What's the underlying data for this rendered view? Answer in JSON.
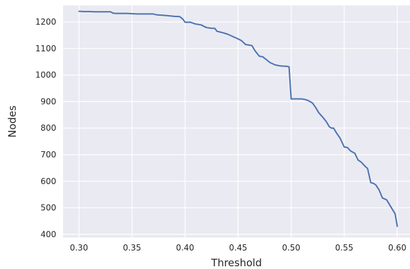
{
  "chart_data": {
    "type": "line",
    "title": "",
    "xlabel": "Threshold",
    "ylabel": "Nodes",
    "xlim": [
      0.285,
      0.612
    ],
    "ylim": [
      388,
      1262
    ],
    "xticks": [
      0.3,
      0.35,
      0.4,
      0.45,
      0.5,
      0.55,
      0.6
    ],
    "xtick_labels": [
      "0.30",
      "0.35",
      "0.40",
      "0.45",
      "0.50",
      "0.55",
      "0.60"
    ],
    "yticks": [
      400,
      500,
      600,
      700,
      800,
      900,
      1000,
      1100,
      1200
    ],
    "ytick_labels": [
      "400",
      "500",
      "600",
      "700",
      "800",
      "900",
      "1000",
      "1100",
      "1200"
    ],
    "grid": true,
    "style": {
      "background": "#EAEAF2",
      "grid_color": "#FFFFFF",
      "line_color": "#4C72B0"
    },
    "series": [
      {
        "x": [
          0.3,
          0.305,
          0.31,
          0.315,
          0.32,
          0.325,
          0.33,
          0.332,
          0.335,
          0.34,
          0.345,
          0.35,
          0.355,
          0.36,
          0.365,
          0.37,
          0.373,
          0.376,
          0.38,
          0.385,
          0.39,
          0.395,
          0.398,
          0.4,
          0.405,
          0.41,
          0.415,
          0.42,
          0.425,
          0.428,
          0.43,
          0.435,
          0.44,
          0.445,
          0.45,
          0.453,
          0.457,
          0.46,
          0.463,
          0.466,
          0.47,
          0.473,
          0.476,
          0.48,
          0.485,
          0.49,
          0.496,
          0.498,
          0.5,
          0.505,
          0.51,
          0.513,
          0.516,
          0.52,
          0.523,
          0.526,
          0.53,
          0.533,
          0.536,
          0.538,
          0.54,
          0.543,
          0.546,
          0.55,
          0.553,
          0.556,
          0.56,
          0.563,
          0.566,
          0.57,
          0.572,
          0.575,
          0.578,
          0.58,
          0.583,
          0.586,
          0.59,
          0.593,
          0.596,
          0.598,
          0.6
        ],
        "y": [
          1240,
          1239,
          1239,
          1238,
          1238,
          1238,
          1238,
          1233,
          1232,
          1232,
          1232,
          1231,
          1230,
          1230,
          1230,
          1230,
          1227,
          1226,
          1225,
          1223,
          1221,
          1220,
          1210,
          1199,
          1199,
          1192,
          1189,
          1179,
          1176,
          1176,
          1165,
          1160,
          1154,
          1145,
          1136,
          1130,
          1115,
          1113,
          1111,
          1091,
          1071,
          1069,
          1060,
          1047,
          1038,
          1034,
          1033,
          1031,
          910,
          910,
          910,
          908,
          904,
          895,
          878,
          858,
          840,
          825,
          805,
          800,
          800,
          780,
          763,
          729,
          727,
          714,
          705,
          680,
          672,
          655,
          648,
          595,
          591,
          585,
          566,
          537,
          530,
          510,
          490,
          477,
          430
        ]
      }
    ]
  }
}
